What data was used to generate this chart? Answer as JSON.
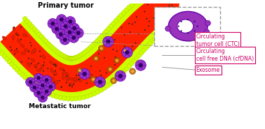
{
  "title": "",
  "background_color": "#ffffff",
  "vessel_outer_color": "#ccff00",
  "vessel_inner_color": "#ff2200",
  "label_ctc": "Circulating\ntumor cell (CTC)",
  "label_cfdna": "Circulating\ncell free DNA (cfDNA)",
  "label_exosome": "Exosome",
  "label_primary": "Primary tumor",
  "label_metastatic": "Metastatic tumor",
  "label_color": "#cc0066",
  "text_color_black": "#000000",
  "cell_purple_dark": "#6600aa",
  "cell_purple_light": "#9933cc",
  "cell_core": "#330066",
  "rbc_color": "#cc0000",
  "small_particle_color": "#888888",
  "dna_color": "#222222",
  "box_edge_color": "#999999"
}
